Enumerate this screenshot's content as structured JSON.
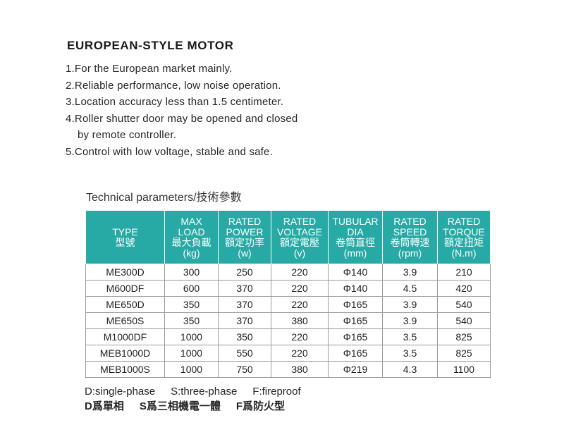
{
  "title": "EUROPEAN-STYLE MOTOR",
  "features": [
    {
      "line": "1.For the European market mainly."
    },
    {
      "line": "2.Reliable performance, low noise operation."
    },
    {
      "line": "3.Location accuracy less than 1.5 centimeter."
    },
    {
      "line": "4.Roller shutter door may be opened and closed",
      "continuation": "by remote controller."
    },
    {
      "line": "5.Control with low voltage, stable and safe."
    }
  ],
  "tech_title": "Technical parameters/技術參數",
  "table": {
    "header_color": "#27a9a5",
    "headers": [
      {
        "lines": [
          "TYPE",
          "型號"
        ]
      },
      {
        "lines": [
          "MAX",
          "LOAD",
          "最大負載",
          "(kg)"
        ]
      },
      {
        "lines": [
          "RATED",
          "POWER",
          "額定功率",
          "(w)"
        ]
      },
      {
        "lines": [
          "RATED",
          "VOLTAGE",
          "額定電壓",
          "(v)"
        ]
      },
      {
        "lines": [
          "TUBULAR",
          "DIA",
          "卷筒直徑",
          "(mm)"
        ]
      },
      {
        "lines": [
          "RATED",
          "SPEED",
          "卷筒轉速",
          "(rpm)"
        ]
      },
      {
        "lines": [
          "RATED",
          "TORQUE",
          "額定扭矩",
          "(N.m)"
        ]
      }
    ],
    "rows": [
      [
        "ME300D",
        "300",
        "250",
        "220",
        "Φ140",
        "3.9",
        "210"
      ],
      [
        "M600DF",
        "600",
        "370",
        "220",
        "Φ140",
        "4.5",
        "420"
      ],
      [
        "ME650D",
        "350",
        "370",
        "220",
        "Φ165",
        "3.9",
        "540"
      ],
      [
        "ME650S",
        "350",
        "370",
        "380",
        "Φ165",
        "3.9",
        "540"
      ],
      [
        "M1000DF",
        "1000",
        "350",
        "220",
        "Φ165",
        "3.5",
        "825"
      ],
      [
        "MEB1000D",
        "1000",
        "550",
        "220",
        "Φ165",
        "3.5",
        "825"
      ],
      [
        "MEB1000S",
        "1000",
        "750",
        "380",
        "Φ219",
        "4.3",
        "1100"
      ]
    ]
  },
  "legend": {
    "en": [
      "D:single-phase",
      "S:three-phase",
      "F:fireproof"
    ],
    "zh": [
      "D爲單相",
      "S爲三相機電一體",
      "F爲防火型"
    ]
  }
}
